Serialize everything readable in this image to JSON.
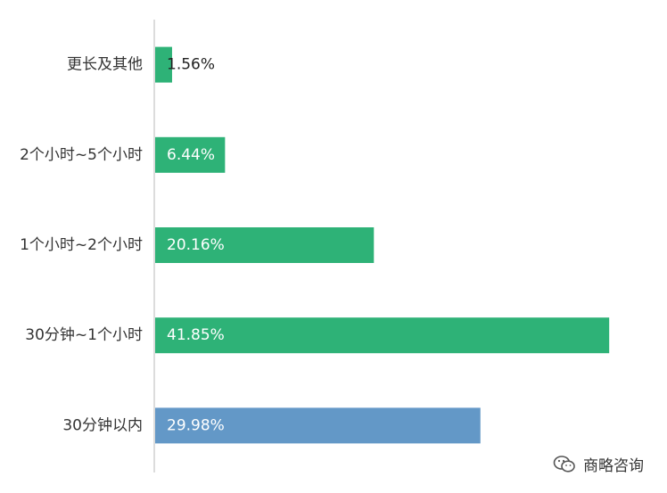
{
  "chart_data": {
    "type": "bar",
    "orientation": "horizontal",
    "categories": [
      "更长及其他",
      "2个小时~5个小时",
      "1个小时~2个小时",
      "30分钟~1个小时",
      "30分钟以内"
    ],
    "values": [
      1.56,
      6.44,
      20.16,
      41.85,
      29.98
    ],
    "value_labels": [
      "1.56%",
      "6.44%",
      "20.16%",
      "41.85%",
      "29.98%"
    ],
    "bar_colors": [
      "#2eb277",
      "#2eb277",
      "#2eb277",
      "#2eb277",
      "#6398c7"
    ],
    "xlim": [
      0,
      42
    ],
    "grid": false
  },
  "watermark": {
    "icon": "wechat-icon",
    "text": "商略咨询"
  }
}
